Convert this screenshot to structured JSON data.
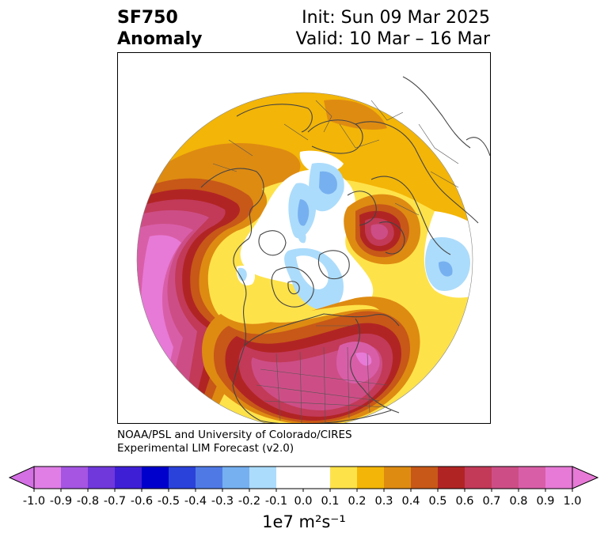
{
  "title": {
    "variable": "SF750",
    "subtitle": "Anomaly",
    "init": "Init: Sun 09 Mar 2025",
    "valid": "Valid: 10 Mar – 16 Mar"
  },
  "credit": {
    "line1": "NOAA/PSL and University of Colorado/CIRES",
    "line2": "Experimental LIM Forecast (v2.0)"
  },
  "colorbar": {
    "labels": [
      "-1.0",
      "-0.9",
      "-0.8",
      "-0.7",
      "-0.6",
      "-0.5",
      "-0.4",
      "-0.3",
      "-0.2",
      "-0.1",
      "0.0",
      "0.1",
      "0.2",
      "0.3",
      "0.4",
      "0.5",
      "0.6",
      "0.7",
      "0.8",
      "0.9",
      "1.0"
    ],
    "colors": [
      "#e07ee6",
      "#a555e2",
      "#7038db",
      "#3f1fd6",
      "#0000cc",
      "#2a42da",
      "#4f7ae6",
      "#76b0f0",
      "#acdcfb",
      "#ffffff",
      "#ffffff",
      "#fee24a",
      "#f3b507",
      "#de8b12",
      "#c75818",
      "#b12424",
      "#c23a58",
      "#cd4e86",
      "#d95ea8",
      "#e77ad6"
    ],
    "extend_min_color": "#d46fe4",
    "extend_max_color": "#e77ad6",
    "unit": "1e7 m²s⁻¹"
  }
}
